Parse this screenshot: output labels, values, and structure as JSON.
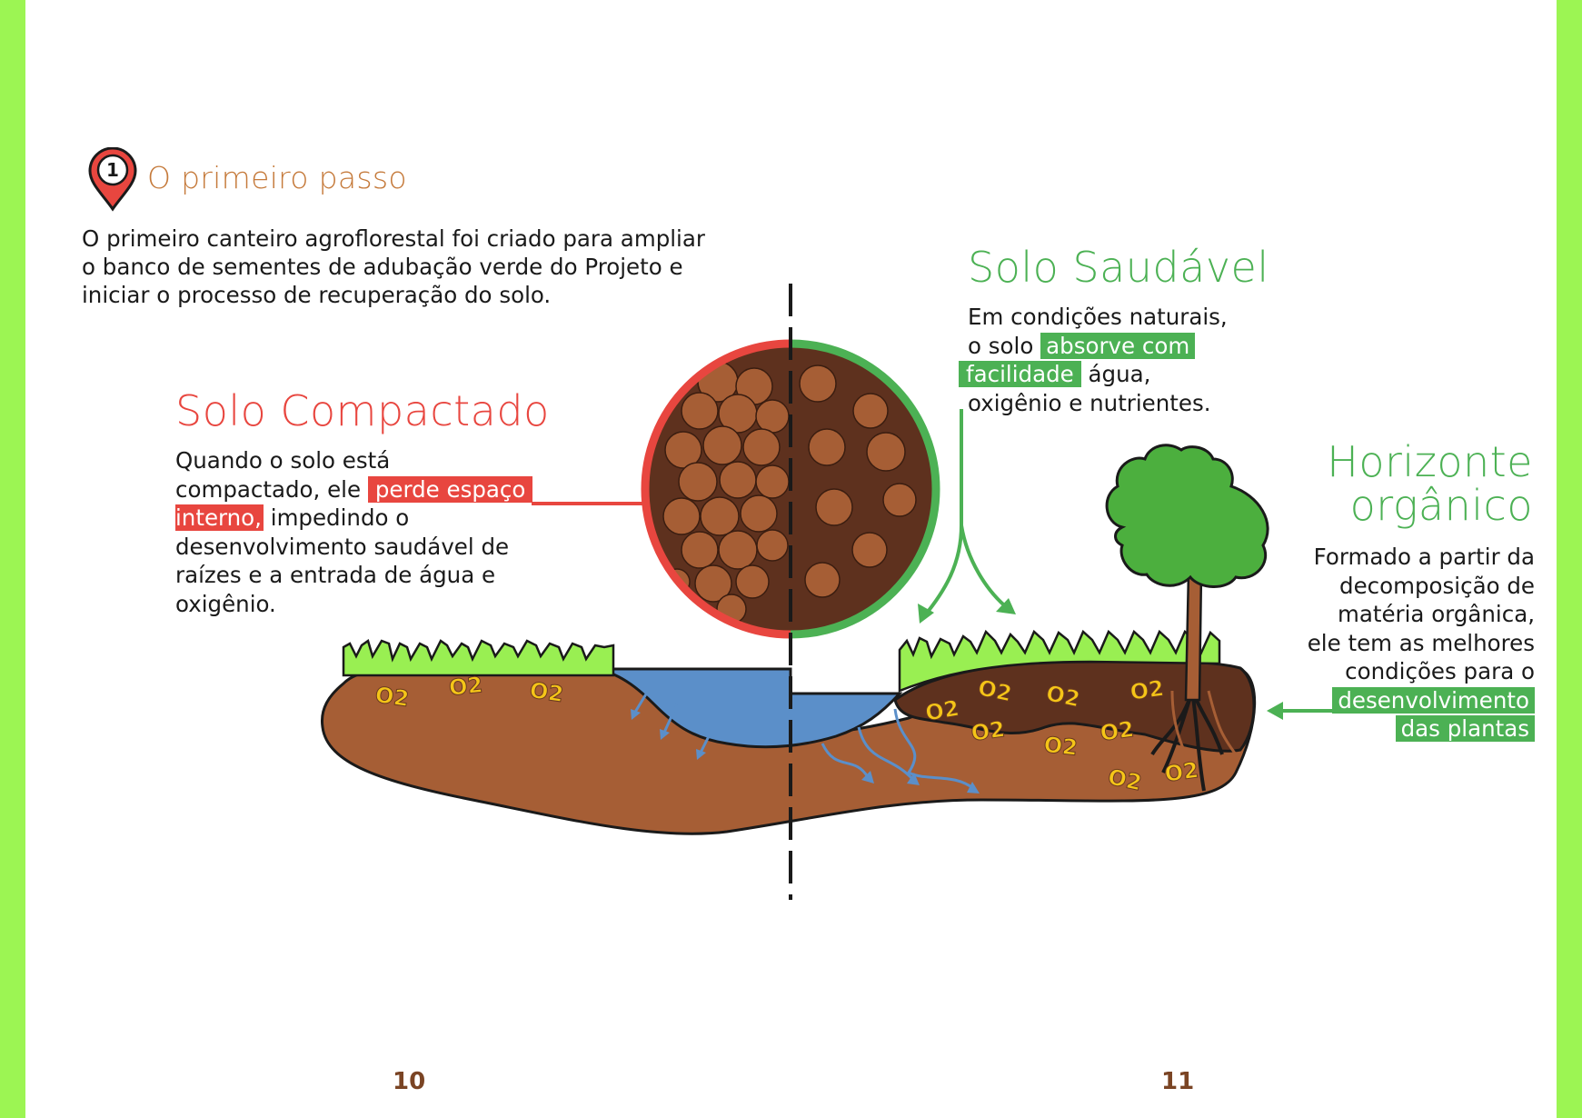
{
  "step": {
    "number": "1",
    "title": "O primeiro passo"
  },
  "intro": {
    "line1": "O primeiro canteiro agroflorestal foi criado para ampliar",
    "line2": "o banco de sementes de adubação verde do Projeto e",
    "line3": "iniciar o processo de recuperação do solo."
  },
  "compacted": {
    "heading": "Solo Compactado",
    "line1": "Quando o solo está",
    "line2_pre": "compactado, ele ",
    "highlight1": "perde espaço",
    "highlight2": "interno,",
    "line3_post": " impedindo o",
    "line4": "desenvolvimento saudável de",
    "line5": "raízes e a entrada de água e",
    "line6": "oxigênio."
  },
  "healthy": {
    "heading": "Solo Saudável",
    "line1": "Em condições naturais,",
    "line2_pre": "o solo ",
    "highlight1": "absorve com",
    "highlight2": "facilidade",
    "line3_post": " água,",
    "line4": "oxigênio e nutrientes."
  },
  "horizon": {
    "heading_line1": "Horizonte",
    "heading_line2": "orgânico",
    "line1": "Formado a partir da",
    "line2": "decomposição de",
    "line3": "matéria orgânica,",
    "line4": "ele tem as melhores",
    "line5": "condições para o",
    "highlight1": "desenvolvimento",
    "highlight2": "das plantas"
  },
  "o2_label": "O2",
  "pages": {
    "left": "10",
    "right": "11"
  },
  "colors": {
    "side_bar": "#9cf553",
    "red": "#e8463f",
    "green": "#4cb154",
    "soil": "#a65e35",
    "dark_soil": "#5e311e",
    "water": "#5b8fc9",
    "grass": "#99ef52",
    "tree": "#4caf3e",
    "o2_yellow": "#f5c518",
    "step_title": "#c57a3b",
    "page_number": "#7a4424"
  }
}
